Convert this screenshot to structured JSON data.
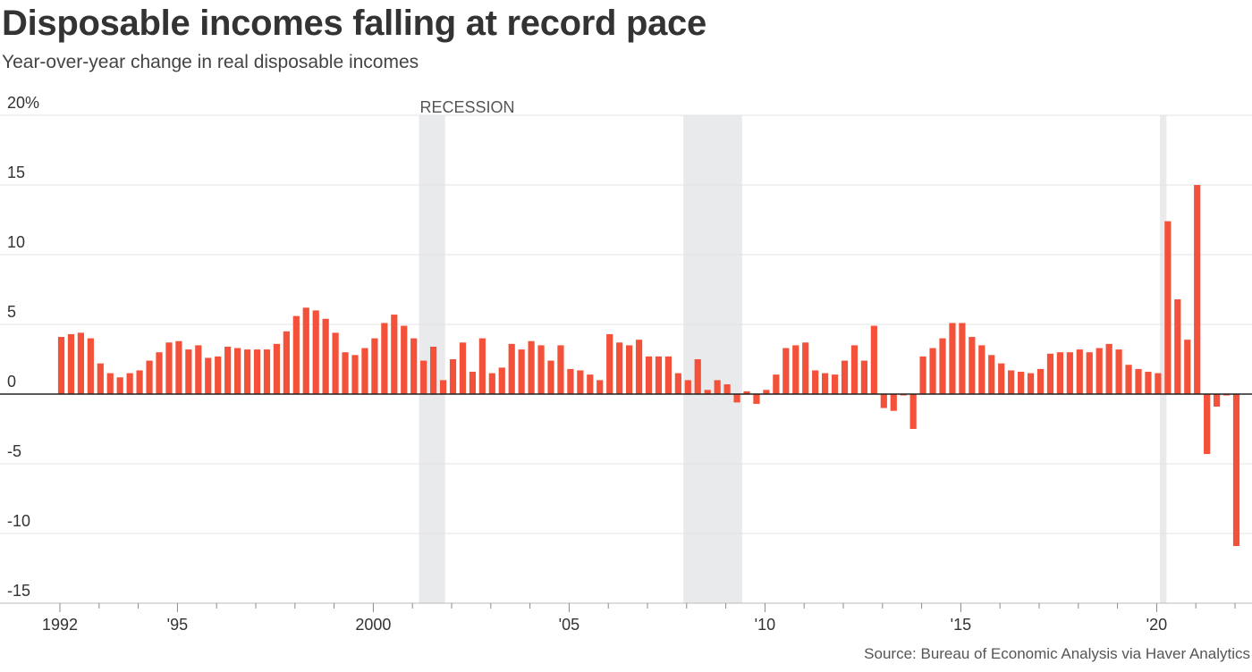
{
  "title": "Disposable incomes falling at record pace",
  "subtitle": "Year-over-year change in real disposable incomes",
  "source": "Source: Bureau of Economic Analysis via Haver Analytics",
  "chart_data": {
    "type": "bar",
    "title": "Disposable incomes falling at record pace",
    "subtitle": "Year-over-year change in real disposable incomes",
    "xlabel": "",
    "ylabel": "",
    "frequency": "quarterly",
    "start": "1992-Q1",
    "ylim": [
      -15,
      20
    ],
    "yticks": [
      20,
      15,
      10,
      5,
      0,
      -5,
      -10,
      -15
    ],
    "ytick_labels": [
      "20%",
      "15",
      "10",
      "5",
      "0",
      "-5",
      "-10",
      "-15"
    ],
    "xticks": [
      1992,
      1995,
      2000,
      2005,
      2010,
      2015,
      2020
    ],
    "xtick_labels": [
      "1992",
      "'95",
      "2000",
      "'05",
      "'10",
      "'15",
      "'20"
    ],
    "grid": true,
    "bar_color": "#f4513a",
    "recession_color": "#e9eaec",
    "recession_label": "RECESSION",
    "recessions": [
      {
        "start": "2001-03",
        "end": "2001-11"
      },
      {
        "start": "2007-12",
        "end": "2009-06"
      },
      {
        "start": "2020-02",
        "end": "2020-04"
      }
    ],
    "values": [
      4.1,
      4.3,
      4.4,
      4.0,
      2.2,
      1.5,
      1.2,
      1.5,
      1.7,
      2.4,
      3.0,
      3.7,
      3.8,
      3.2,
      3.5,
      2.6,
      2.7,
      3.4,
      3.3,
      3.2,
      3.2,
      3.2,
      3.6,
      4.5,
      5.6,
      6.2,
      6.0,
      5.4,
      4.4,
      3.0,
      2.8,
      3.3,
      4.0,
      5.1,
      5.7,
      4.9,
      4.0,
      2.4,
      3.4,
      1.0,
      2.5,
      3.7,
      1.6,
      4.0,
      1.5,
      1.9,
      3.6,
      3.2,
      3.8,
      3.5,
      2.4,
      3.5,
      1.8,
      1.7,
      1.4,
      1.0,
      4.3,
      3.7,
      3.5,
      3.9,
      2.7,
      2.7,
      2.7,
      1.5,
      1.0,
      2.5,
      0.3,
      1.0,
      0.7,
      -0.6,
      0.2,
      -0.7,
      0.3,
      1.4,
      3.3,
      3.5,
      3.7,
      1.7,
      1.5,
      1.4,
      2.4,
      3.5,
      2.4,
      4.9,
      -1.0,
      -1.2,
      -0.1,
      -2.5,
      2.7,
      3.3,
      4.0,
      5.1,
      5.1,
      4.1,
      3.5,
      2.8,
      2.2,
      1.7,
      1.6,
      1.5,
      1.8,
      2.9,
      3.0,
      3.0,
      3.2,
      3.0,
      3.3,
      3.6,
      3.2,
      2.1,
      1.8,
      1.6,
      1.5,
      12.4,
      6.8,
      3.9,
      15.0,
      -4.3,
      -0.9,
      -0.1,
      -10.9
    ]
  }
}
